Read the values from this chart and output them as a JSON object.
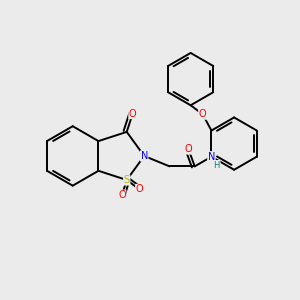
{
  "background_color": "#ebebeb",
  "bond_color": "#000000",
  "atom_colors": {
    "O": "#ff0000",
    "N": "#0000ff",
    "S": "#b8b800",
    "H": "#008080",
    "C": "#000000"
  },
  "figsize": [
    3.0,
    3.0
  ],
  "dpi": 100,
  "lw": 1.4,
  "double_off": 0.1,
  "fs": 7.0
}
